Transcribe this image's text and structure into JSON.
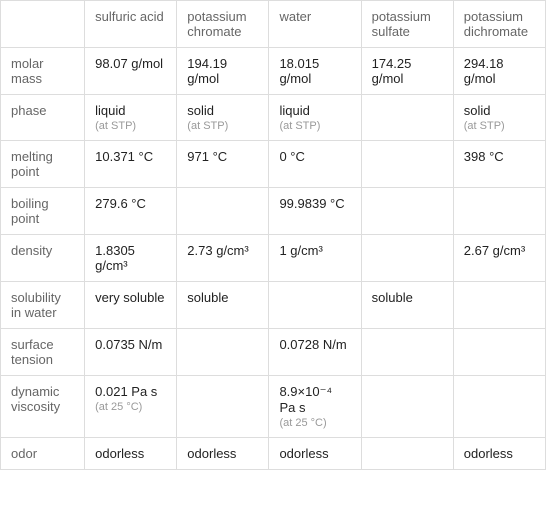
{
  "table": {
    "type": "table",
    "background_color": "#ffffff",
    "border_color": "#dddddd",
    "text_color": "#333333",
    "header_text_color": "#666666",
    "sub_text_color": "#999999",
    "font_size": 13,
    "sub_font_size": 11,
    "columns": [
      "sulfuric acid",
      "potassium chromate",
      "water",
      "potassium sulfate",
      "potassium dichromate"
    ],
    "rows": [
      {
        "label": "molar mass",
        "cells": [
          {
            "value": "98.07 g/mol"
          },
          {
            "value": "194.19 g/mol"
          },
          {
            "value": "18.015 g/mol"
          },
          {
            "value": "174.25 g/mol"
          },
          {
            "value": "294.18 g/mol"
          }
        ]
      },
      {
        "label": "phase",
        "cells": [
          {
            "value": "liquid",
            "sub": "(at STP)"
          },
          {
            "value": "solid",
            "sub": "(at STP)"
          },
          {
            "value": "liquid",
            "sub": "(at STP)"
          },
          {
            "value": ""
          },
          {
            "value": "solid",
            "sub": "(at STP)"
          }
        ]
      },
      {
        "label": "melting point",
        "cells": [
          {
            "value": "10.371 °C"
          },
          {
            "value": "971 °C"
          },
          {
            "value": "0 °C"
          },
          {
            "value": ""
          },
          {
            "value": "398 °C"
          }
        ]
      },
      {
        "label": "boiling point",
        "cells": [
          {
            "value": "279.6 °C"
          },
          {
            "value": ""
          },
          {
            "value": "99.9839 °C"
          },
          {
            "value": ""
          },
          {
            "value": ""
          }
        ]
      },
      {
        "label": "density",
        "cells": [
          {
            "value": "1.8305 g/cm³"
          },
          {
            "value": "2.73 g/cm³"
          },
          {
            "value": "1 g/cm³"
          },
          {
            "value": ""
          },
          {
            "value": "2.67 g/cm³"
          }
        ]
      },
      {
        "label": "solubility in water",
        "cells": [
          {
            "value": "very soluble"
          },
          {
            "value": "soluble"
          },
          {
            "value": ""
          },
          {
            "value": "soluble"
          },
          {
            "value": ""
          }
        ]
      },
      {
        "label": "surface tension",
        "cells": [
          {
            "value": "0.0735 N/m"
          },
          {
            "value": ""
          },
          {
            "value": "0.0728 N/m"
          },
          {
            "value": ""
          },
          {
            "value": ""
          }
        ]
      },
      {
        "label": "dynamic viscosity",
        "cells": [
          {
            "value": "0.021 Pa s",
            "sub": "(at 25 °C)"
          },
          {
            "value": ""
          },
          {
            "value": "8.9×10⁻⁴ Pa s",
            "sub": "(at 25 °C)"
          },
          {
            "value": ""
          },
          {
            "value": ""
          }
        ]
      },
      {
        "label": "odor",
        "cells": [
          {
            "value": "odorless"
          },
          {
            "value": "odorless"
          },
          {
            "value": "odorless"
          },
          {
            "value": ""
          },
          {
            "value": "odorless"
          }
        ]
      }
    ]
  }
}
